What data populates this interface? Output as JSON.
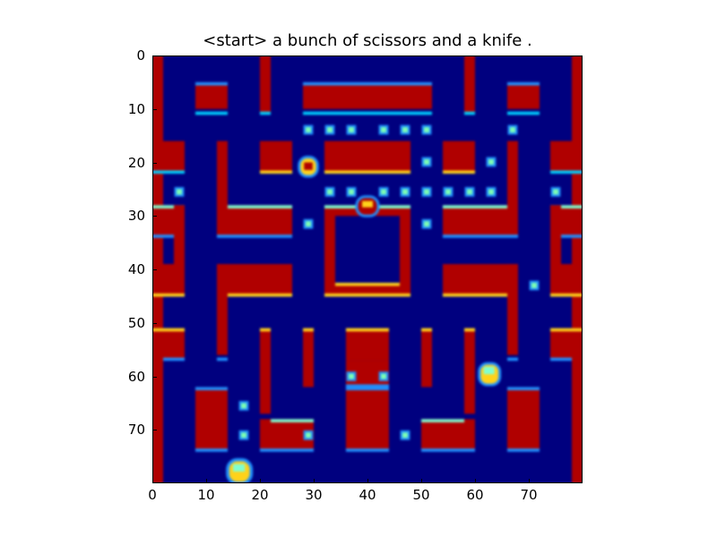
{
  "title": "<start> a bunch of scissors and a knife .",
  "axes": {
    "x_ticks": [
      "0",
      "10",
      "20",
      "30",
      "40",
      "50",
      "60",
      "70"
    ],
    "y_ticks": [
      "0",
      "10",
      "20",
      "30",
      "40",
      "50",
      "60",
      "70"
    ],
    "x_range": [
      0,
      80
    ],
    "y_range": [
      0,
      80
    ]
  },
  "colors": {
    "background": "#00007f",
    "wall": "#b00000",
    "wall_edge_light": "#1e90ff",
    "wall_edge_dark": "#00b7ff",
    "pellet": "#7fffb0",
    "power_bar": "#ffd21a",
    "ghost": "#ffd21a",
    "pacman": "#ffd21a"
  },
  "sprites": [
    "pacman-sprite",
    "ghost-sprite-1",
    "ghost-sprite-2",
    "ghost-sprite-3"
  ]
}
